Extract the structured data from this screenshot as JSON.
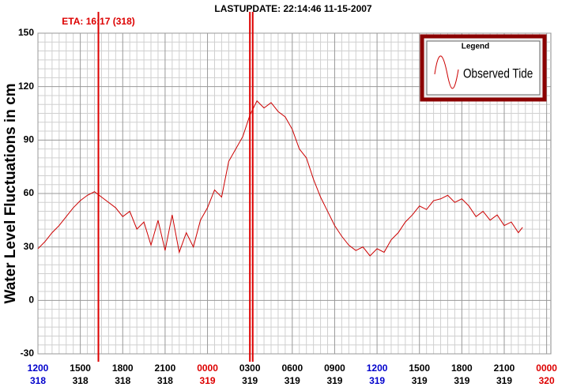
{
  "chart_data": {
    "type": "line",
    "title": "LASTUPDATE: 22:14:46  11-15-2007",
    "y_label": "Water Level Fluctuations in cm",
    "xlim": [
      0,
      36.3
    ],
    "ylim": [
      -30,
      150
    ],
    "yticks": [
      -30,
      0,
      30,
      60,
      90,
      120,
      150
    ],
    "xticks": [
      {
        "value": 0,
        "label": "1200",
        "day": "318",
        "color": "#0000cc"
      },
      {
        "value": 3,
        "label": "1500",
        "day": "318",
        "color": "#000000"
      },
      {
        "value": 6,
        "label": "1800",
        "day": "318",
        "color": "#000000"
      },
      {
        "value": 9,
        "label": "2100",
        "day": "318",
        "color": "#000000"
      },
      {
        "value": 12,
        "label": "0000",
        "day": "319",
        "color": "#dd0000"
      },
      {
        "value": 15,
        "label": "0300",
        "day": "319",
        "color": "#000000"
      },
      {
        "value": 18,
        "label": "0600",
        "day": "319",
        "color": "#000000"
      },
      {
        "value": 21,
        "label": "0900",
        "day": "319",
        "color": "#000000"
      },
      {
        "value": 24,
        "label": "1200",
        "day": "319",
        "color": "#0000cc"
      },
      {
        "value": 27,
        "label": "1500",
        "day": "319",
        "color": "#000000"
      },
      {
        "value": 30,
        "label": "1800",
        "day": "319",
        "color": "#000000"
      },
      {
        "value": 33,
        "label": "2100",
        "day": "319",
        "color": "#000000"
      },
      {
        "value": 36,
        "label": "0000",
        "day": "320",
        "color": "#dd0000"
      }
    ],
    "grid": true,
    "legend_title": "Legend",
    "legend": "top-right",
    "markers": [
      {
        "value": 4.28,
        "label": "ETA: 16:17 (318)",
        "color": "#dd0000"
      },
      {
        "value": 15.0,
        "color": "#dd0000"
      },
      {
        "value": 15.2,
        "color": "#dd0000"
      }
    ],
    "series": [
      {
        "name": "Observed Tide",
        "color": "#cc0000",
        "x": [
          0,
          0.5,
          1,
          1.5,
          2,
          2.5,
          3,
          3.5,
          4,
          4.5,
          5,
          5.5,
          6,
          6.5,
          7,
          7.5,
          8,
          8.5,
          9,
          9.5,
          10,
          10.5,
          11,
          11.5,
          12,
          12.5,
          13,
          13.5,
          14,
          14.5,
          15,
          15.5,
          16,
          16.5,
          17,
          17.5,
          18,
          18.5,
          19,
          19.5,
          20,
          20.5,
          21,
          21.5,
          22,
          22.5,
          23,
          23.5,
          24,
          24.5,
          25,
          25.5,
          26,
          26.5,
          27,
          27.5,
          28,
          28.5,
          29,
          29.5,
          30,
          30.5,
          31,
          31.5,
          32,
          32.5,
          33,
          33.5,
          34,
          34.3
        ],
        "values": [
          29,
          33,
          38,
          42,
          47,
          52,
          56,
          59,
          61,
          58,
          55,
          52,
          47,
          50,
          40,
          44,
          31,
          45,
          28,
          48,
          27,
          38,
          30,
          45,
          52,
          62,
          58,
          78,
          85,
          92,
          104,
          112,
          108,
          111,
          106,
          103,
          96,
          85,
          80,
          68,
          58,
          50,
          42,
          36,
          31,
          28,
          30,
          25,
          29,
          27,
          34,
          38,
          44,
          48,
          53,
          51,
          56,
          57,
          59,
          55,
          57,
          53,
          47,
          50,
          45,
          48,
          42,
          44,
          38,
          41
        ]
      }
    ]
  }
}
